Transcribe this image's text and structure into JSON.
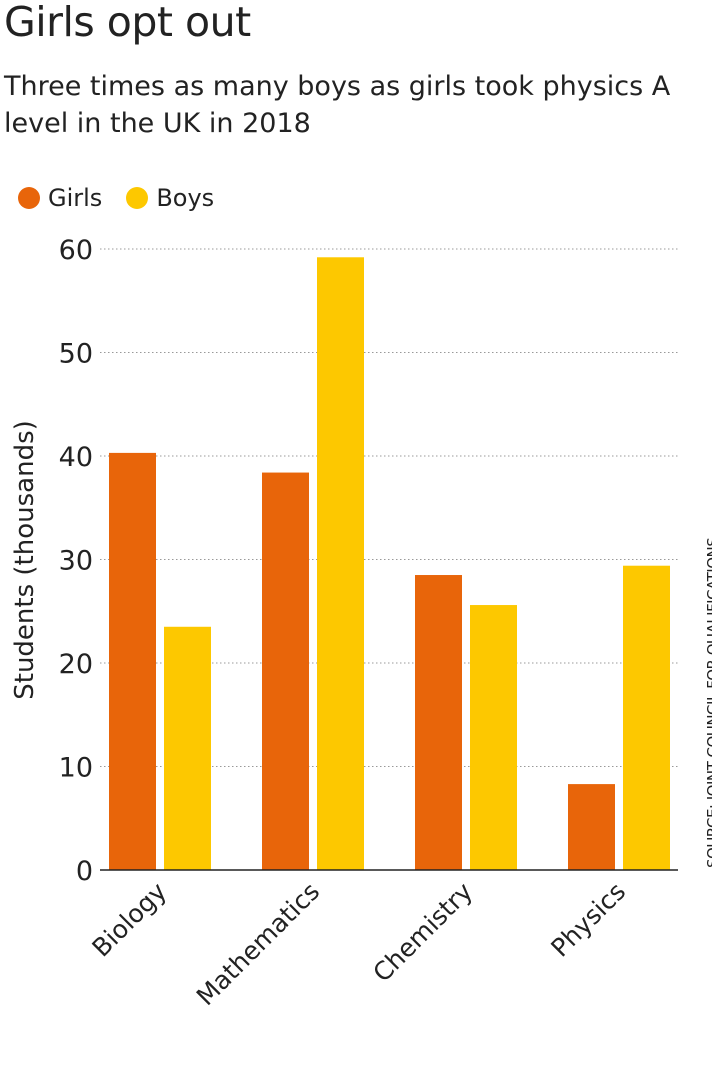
{
  "chart_data": {
    "type": "bar",
    "title": "Girls opt out",
    "subtitle": "Three times as many boys as girls took physics A level in the UK in 2018",
    "categories": [
      "Biology",
      "Mathematics",
      "Chemistry",
      "Physics"
    ],
    "series": [
      {
        "name": "Girls",
        "color": "#e8650a",
        "values": [
          40.3,
          38.4,
          28.5,
          8.3
        ]
      },
      {
        "name": "Boys",
        "color": "#fdc800",
        "values": [
          23.5,
          59.2,
          25.6,
          29.4
        ]
      }
    ],
    "xlabel": "",
    "ylabel": "Students (thousands)",
    "ylim": [
      0,
      60
    ],
    "yticks": [
      0,
      10,
      20,
      30,
      40,
      50,
      60
    ],
    "grid": true,
    "legend": "top-left",
    "source": "SOURCE: JOINT COUNCIL FOR QUALIFICATIONS"
  }
}
